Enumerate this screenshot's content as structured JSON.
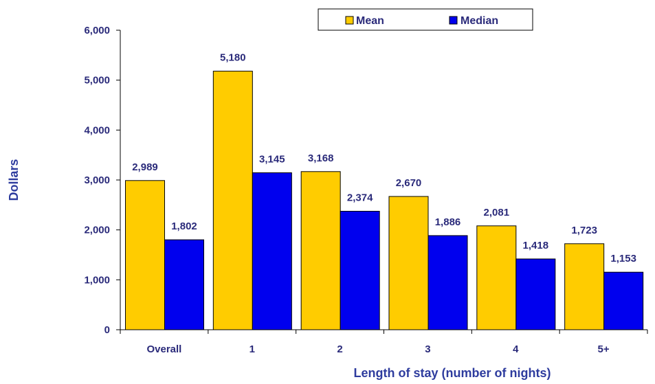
{
  "chart_data": {
    "type": "bar",
    "title": "",
    "xlabel": "Length of stay (number of nights)",
    "ylabel": "Dollars",
    "categories": [
      "Overall",
      "1",
      "2",
      "3",
      "4",
      "5+"
    ],
    "series": [
      {
        "name": "Mean",
        "values": [
          2989,
          5180,
          3168,
          2670,
          2081,
          1723
        ],
        "labels": [
          "2,989",
          "5,180",
          "3,168",
          "2,670",
          "2,081",
          "1,723"
        ],
        "color": "#FFCC00"
      },
      {
        "name": "Median",
        "values": [
          1802,
          3145,
          2374,
          1886,
          1418,
          1153
        ],
        "labels": [
          "1,802",
          "3,145",
          "2,374",
          "1,886",
          "1,418",
          "1,153"
        ],
        "color": "#0000EE"
      }
    ],
    "ylim": [
      0,
      6000
    ],
    "yticks": [
      0,
      1000,
      2000,
      3000,
      4000,
      5000,
      6000
    ],
    "ytick_labels": [
      "0",
      "1,000",
      "2,000",
      "3,000",
      "4,000",
      "5,000",
      "6,000"
    ],
    "grid": false,
    "legend_position": "top-right"
  }
}
